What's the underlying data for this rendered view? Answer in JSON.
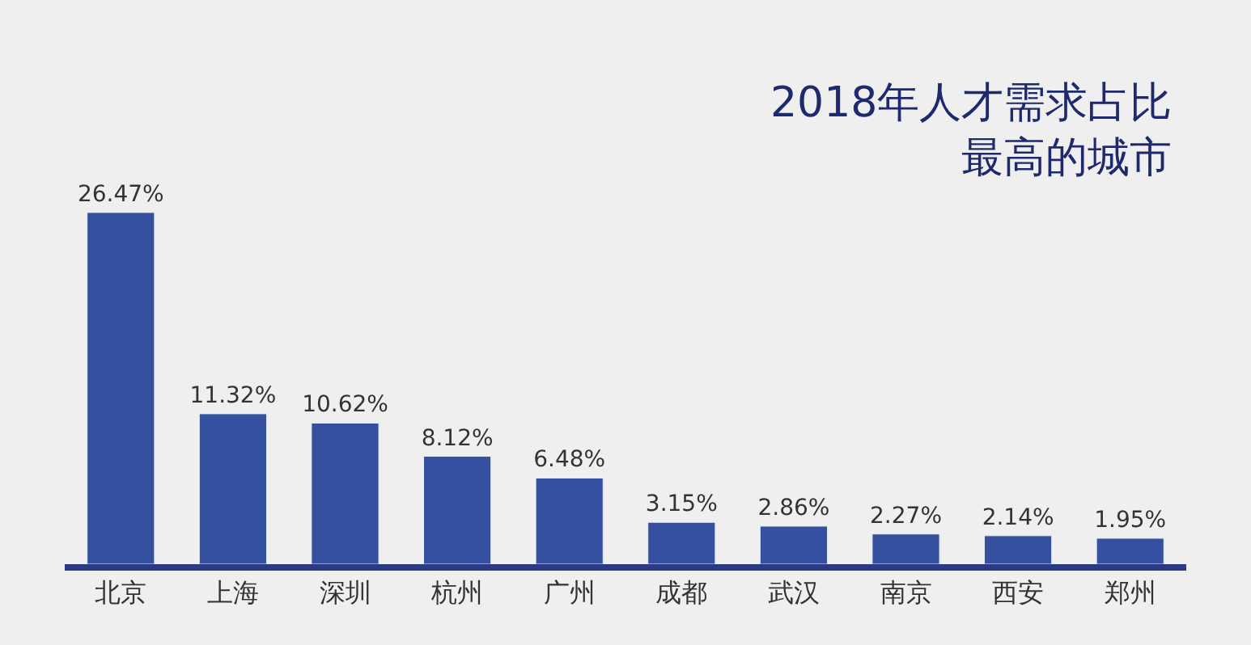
{
  "chart_data": {
    "type": "bar",
    "title": "2018年人才需求占比最高的城市",
    "categories": [
      "北京",
      "上海",
      "深圳",
      "杭州",
      "广州",
      "成都",
      "武汉",
      "南京",
      "西安",
      "郑州"
    ],
    "values": [
      26.47,
      11.32,
      10.62,
      8.12,
      6.48,
      3.15,
      2.86,
      2.27,
      2.14,
      1.95
    ],
    "value_labels": [
      "26.47%",
      "11.32%",
      "10.62%",
      "8.12%",
      "6.48%",
      "3.15%",
      "2.86%",
      "2.27%",
      "2.14%",
      "1.95%"
    ],
    "color": "#35509f"
  }
}
